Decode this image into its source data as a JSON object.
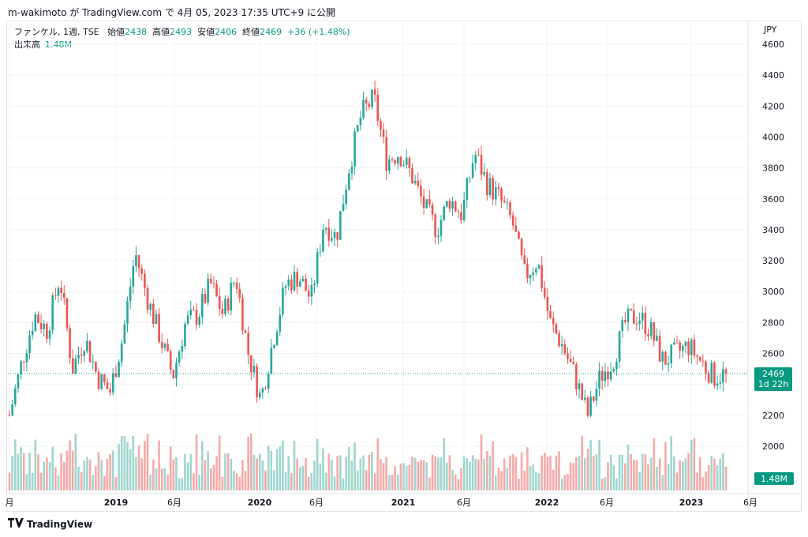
{
  "header": {
    "text": "m-wakimoto が TradingView.com で 4月 05, 2023 17:35 UTC+9 に公開"
  },
  "legend": {
    "symbol": "ファンケル, 1週, TSE",
    "open_label": "始値",
    "open": "2438",
    "high_label": "高値",
    "high": "2493",
    "low_label": "安値",
    "low": "2406",
    "close_label": "終値",
    "close": "2469",
    "change": "+36 (+1.48%)",
    "volume_label": "出来高",
    "volume": "1.48M"
  },
  "axis": {
    "unit": "JPY"
  },
  "price_tag": {
    "price": "2469",
    "countdown": "1d 22h"
  },
  "volume_tag": "1.48M",
  "footer": {
    "brand": "TradingView"
  },
  "colors": {
    "up": "#26a69a",
    "down": "#ef5350",
    "up_vol": "#9fd6cf",
    "down_vol": "#f7a9a7",
    "last": "#089981"
  },
  "chart_data": {
    "type": "candlestick",
    "title": "ファンケル, 1週, TSE",
    "ylabel": "JPY",
    "ylim": [
      1900,
      4700
    ],
    "y_ticks": [
      2000,
      2200,
      2400,
      2600,
      2800,
      3000,
      3200,
      3400,
      3600,
      3800,
      4000,
      4200,
      4400,
      4600
    ],
    "x_ticks": [
      {
        "label": "月",
        "bold": false
      },
      {
        "label": "2019",
        "bold": true
      },
      {
        "label": "6月",
        "bold": false
      },
      {
        "label": "2020",
        "bold": true
      },
      {
        "label": "6月",
        "bold": false
      },
      {
        "label": "2021",
        "bold": true
      },
      {
        "label": "6月",
        "bold": false
      },
      {
        "label": "2022",
        "bold": true
      },
      {
        "label": "6月",
        "bold": false
      },
      {
        "label": "2023",
        "bold": true
      },
      {
        "label": "6月",
        "bold": false
      }
    ],
    "last_price": 2469,
    "close_series_monthly": [
      {
        "t": "2018-07",
        "c": 2200
      },
      {
        "t": "2018-08",
        "c": 2550
      },
      {
        "t": "2018-09",
        "c": 2850
      },
      {
        "t": "2018-10",
        "c": 2750
      },
      {
        "t": "2018-11",
        "c": 3100
      },
      {
        "t": "2018-12",
        "c": 2500
      },
      {
        "t": "2019-01",
        "c": 2700
      },
      {
        "t": "2019-02",
        "c": 2450
      },
      {
        "t": "2019-03",
        "c": 2350
      },
      {
        "t": "2019-04",
        "c": 2700
      },
      {
        "t": "2019-05",
        "c": 3250
      },
      {
        "t": "2019-06",
        "c": 2950
      },
      {
        "t": "2019-07",
        "c": 2700
      },
      {
        "t": "2019-08",
        "c": 2450
      },
      {
        "t": "2019-09",
        "c": 2800
      },
      {
        "t": "2019-10",
        "c": 2850
      },
      {
        "t": "2019-11",
        "c": 3050
      },
      {
        "t": "2019-12",
        "c": 2850
      },
      {
        "t": "2020-01",
        "c": 3100
      },
      {
        "t": "2020-02",
        "c": 2600
      },
      {
        "t": "2020-03",
        "c": 2300
      },
      {
        "t": "2020-04",
        "c": 2700
      },
      {
        "t": "2020-05",
        "c": 3050
      },
      {
        "t": "2020-06",
        "c": 3100
      },
      {
        "t": "2020-07",
        "c": 2950
      },
      {
        "t": "2020-08",
        "c": 3450
      },
      {
        "t": "2020-09",
        "c": 3350
      },
      {
        "t": "2020-10",
        "c": 3800
      },
      {
        "t": "2020-11",
        "c": 4150
      },
      {
        "t": "2020-12",
        "c": 4250
      },
      {
        "t": "2021-01",
        "c": 3850
      },
      {
        "t": "2021-02",
        "c": 3900
      },
      {
        "t": "2021-03",
        "c": 3750
      },
      {
        "t": "2021-04",
        "c": 3550
      },
      {
        "t": "2021-05",
        "c": 3400
      },
      {
        "t": "2021-06",
        "c": 3600
      },
      {
        "t": "2021-07",
        "c": 3500
      },
      {
        "t": "2021-08",
        "c": 3900
      },
      {
        "t": "2021-09",
        "c": 3700
      },
      {
        "t": "2021-10",
        "c": 3600
      },
      {
        "t": "2021-11",
        "c": 3450
      },
      {
        "t": "2021-12",
        "c": 3100
      },
      {
        "t": "2022-01",
        "c": 3200
      },
      {
        "t": "2022-02",
        "c": 2800
      },
      {
        "t": "2022-03",
        "c": 2650
      },
      {
        "t": "2022-04",
        "c": 2450
      },
      {
        "t": "2022-05",
        "c": 2200
      },
      {
        "t": "2022-06",
        "c": 2450
      },
      {
        "t": "2022-07",
        "c": 2550
      },
      {
        "t": "2022-08",
        "c": 2800
      },
      {
        "t": "2022-09",
        "c": 2850
      },
      {
        "t": "2022-10",
        "c": 2750
      },
      {
        "t": "2022-11",
        "c": 2550
      },
      {
        "t": "2022-12",
        "c": 2600
      },
      {
        "t": "2023-01",
        "c": 2650
      },
      {
        "t": "2023-02",
        "c": 2550
      },
      {
        "t": "2023-03",
        "c": 2450
      },
      {
        "t": "2023-04",
        "c": 2469
      }
    ]
  }
}
